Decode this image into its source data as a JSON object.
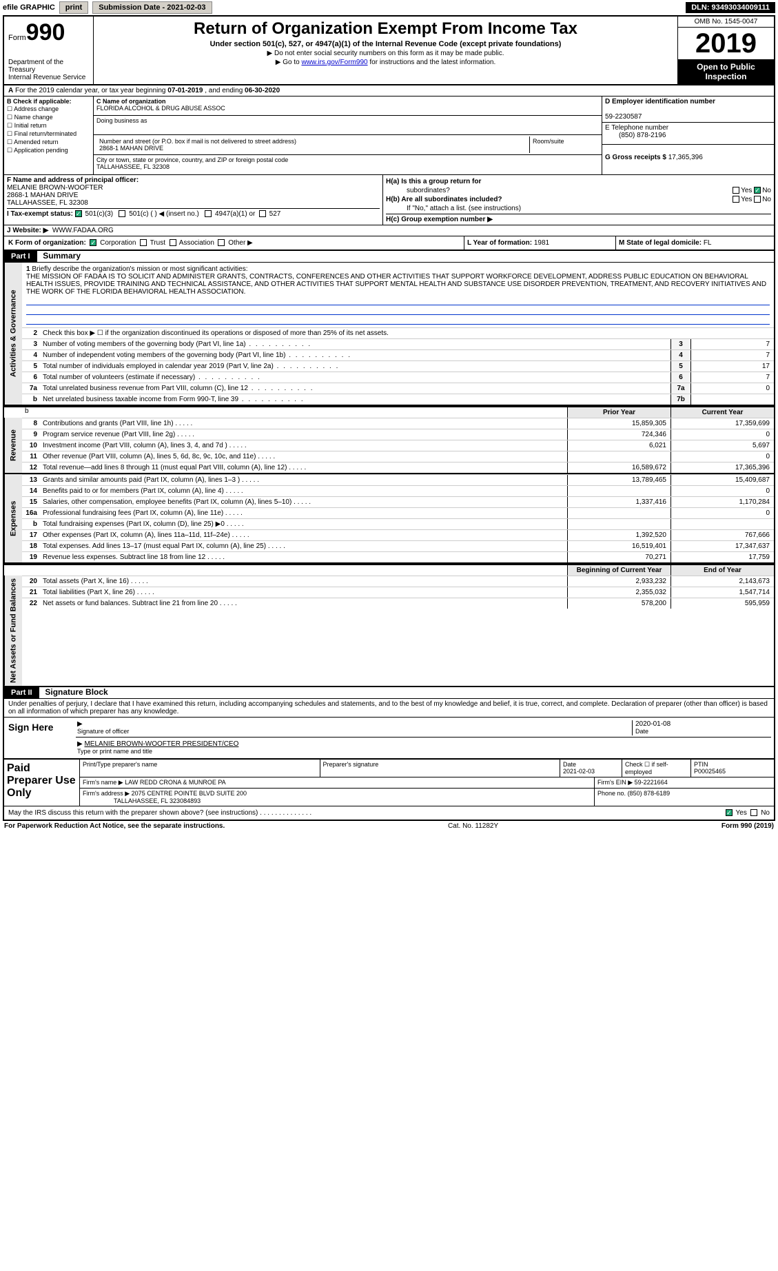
{
  "topbar": {
    "efile_label": "efile GRAPHIC",
    "print_btn": "print",
    "submission_label": "Submission Date - 2021-02-03",
    "dln": "DLN: 93493034009111"
  },
  "header": {
    "form_prefix": "Form",
    "form_number": "990",
    "dept": "Department of the Treasury",
    "irs": "Internal Revenue Service",
    "title": "Return of Organization Exempt From Income Tax",
    "subtitle": "Under section 501(c), 527, or 4947(a)(1) of the Internal Revenue Code (except private foundations)",
    "note1": "▶ Do not enter social security numbers on this form as it may be made public.",
    "note2_pre": "▶ Go to ",
    "note2_link": "www.irs.gov/Form990",
    "note2_post": " for instructions and the latest information.",
    "omb": "OMB No. 1545-0047",
    "year": "2019",
    "inspect": "Open to Public Inspection"
  },
  "period": {
    "label_a": "A",
    "text": " For the 2019 calendar year, or tax year beginning ",
    "begin": "07-01-2019",
    "mid": " , and ending ",
    "end": "06-30-2020"
  },
  "blockB": {
    "title": "B Check if applicable:",
    "items": [
      "Address change",
      "Name change",
      "Initial return",
      "Final return/terminated",
      "Amended return",
      "Application pending"
    ]
  },
  "blockC": {
    "name_lbl": "C Name of organization",
    "name": "FLORIDA ALCOHOL & DRUG ABUSE ASSOC",
    "dba_lbl": "Doing business as",
    "dba": "",
    "addr_lbl": "Number and street (or P.O. box if mail is not delivered to street address)",
    "room_lbl": "Room/suite",
    "addr": "2868-1 MAHAN DRIVE",
    "city_lbl": "City or town, state or province, country, and ZIP or foreign postal code",
    "city": "TALLAHASSEE, FL  32308"
  },
  "blockD": {
    "lbl": "D Employer identification number",
    "val": "59-2230587"
  },
  "blockE": {
    "lbl": "E Telephone number",
    "val": "(850) 878-2196"
  },
  "blockG": {
    "lbl": "G Gross receipts $",
    "val": "17,365,396"
  },
  "blockF": {
    "lbl": "F  Name and address of principal officer:",
    "name": "MELANIE BROWN-WOOFTER",
    "addr1": "2868-1 MAHAN DRIVE",
    "addr2": "TALLAHASSEE, FL  32308"
  },
  "blockH": {
    "ha_lbl": "H(a)  Is this a group return for",
    "ha_sub": "subordinates?",
    "ha_yes": "Yes",
    "ha_no": "No",
    "hb_lbl": "H(b)  Are all subordinates included?",
    "hb_yes": "Yes",
    "hb_no": "No",
    "hb_note": "If \"No,\" attach a list. (see instructions)",
    "hc_lbl": "H(c)  Group exemption number ▶"
  },
  "blockI": {
    "lbl": "I   Tax-exempt status:",
    "opts": [
      "501(c)(3)",
      "501(c) (  ) ◀ (insert no.)",
      "4947(a)(1) or",
      "527"
    ]
  },
  "blockJ": {
    "lbl": "J   Website: ▶",
    "val": "WWW.FADAA.ORG"
  },
  "blockK": {
    "lbl": "K Form of organization:",
    "opts": [
      "Corporation",
      "Trust",
      "Association",
      "Other ▶"
    ]
  },
  "blockL": {
    "lbl": "L Year of formation:",
    "val": "1981"
  },
  "blockM": {
    "lbl": "M State of legal domicile:",
    "val": "FL"
  },
  "part1": {
    "hdr": "Part I",
    "title": "Summary",
    "side_gov": "Activities & Governance",
    "side_rev": "Revenue",
    "side_exp": "Expenses",
    "side_net": "Net Assets or Fund Balances",
    "q1_lbl": "1",
    "q1_txt": "Briefly describe the organization's mission or most significant activities:",
    "q1_val": "THE MISSION OF FADAA IS TO SOLICIT AND ADMINISTER GRANTS, CONTRACTS, CONFERENCES AND OTHER ACTIVITIES THAT SUPPORT WORKFORCE DEVELOPMENT, ADDRESS PUBLIC EDUCATION ON BEHAVIORAL HEALTH ISSUES, PROVIDE TRAINING AND TECHNICAL ASSISTANCE, AND OTHER ACTIVITIES THAT SUPPORT MENTAL HEALTH AND SUBSTANCE USE DISORDER PREVENTION, TREATMENT, AND RECOVERY INITIATIVES AND THE WORK OF THE FLORIDA BEHAVIORAL HEALTH ASSOCIATION.",
    "q2": "Check this box ▶ ☐  if the organization discontinued its operations or disposed of more than 25% of its net assets.",
    "rows_gov": [
      {
        "n": "3",
        "d": "Number of voting members of the governing body (Part VI, line 1a)",
        "box": "3",
        "v": "7"
      },
      {
        "n": "4",
        "d": "Number of independent voting members of the governing body (Part VI, line 1b)",
        "box": "4",
        "v": "7"
      },
      {
        "n": "5",
        "d": "Total number of individuals employed in calendar year 2019 (Part V, line 2a)",
        "box": "5",
        "v": "17"
      },
      {
        "n": "6",
        "d": "Total number of volunteers (estimate if necessary)",
        "box": "6",
        "v": "7"
      },
      {
        "n": "7a",
        "d": "Total unrelated business revenue from Part VIII, column (C), line 12",
        "box": "7a",
        "v": "0"
      },
      {
        "n": "b",
        "d": "Net unrelated business taxable income from Form 990-T, line 39",
        "box": "7b",
        "v": ""
      }
    ],
    "hdr_prior": "Prior Year",
    "hdr_current": "Current Year",
    "rows_rev": [
      {
        "n": "8",
        "d": "Contributions and grants (Part VIII, line 1h)",
        "py": "15,859,305",
        "cy": "17,359,699"
      },
      {
        "n": "9",
        "d": "Program service revenue (Part VIII, line 2g)",
        "py": "724,346",
        "cy": "0"
      },
      {
        "n": "10",
        "d": "Investment income (Part VIII, column (A), lines 3, 4, and 7d )",
        "py": "6,021",
        "cy": "5,697"
      },
      {
        "n": "11",
        "d": "Other revenue (Part VIII, column (A), lines 5, 6d, 8c, 9c, 10c, and 11e)",
        "py": "",
        "cy": "0"
      },
      {
        "n": "12",
        "d": "Total revenue—add lines 8 through 11 (must equal Part VIII, column (A), line 12)",
        "py": "16,589,672",
        "cy": "17,365,396"
      }
    ],
    "rows_exp": [
      {
        "n": "13",
        "d": "Grants and similar amounts paid (Part IX, column (A), lines 1–3 )",
        "py": "13,789,465",
        "cy": "15,409,687"
      },
      {
        "n": "14",
        "d": "Benefits paid to or for members (Part IX, column (A), line 4)",
        "py": "",
        "cy": "0"
      },
      {
        "n": "15",
        "d": "Salaries, other compensation, employee benefits (Part IX, column (A), lines 5–10)",
        "py": "1,337,416",
        "cy": "1,170,284"
      },
      {
        "n": "16a",
        "d": "Professional fundraising fees (Part IX, column (A), line 11e)",
        "py": "",
        "cy": "0"
      },
      {
        "n": "b",
        "d": "Total fundraising expenses (Part IX, column (D), line 25) ▶0",
        "py": "",
        "cy": ""
      },
      {
        "n": "17",
        "d": "Other expenses (Part IX, column (A), lines 11a–11d, 11f–24e)",
        "py": "1,392,520",
        "cy": "767,666"
      },
      {
        "n": "18",
        "d": "Total expenses. Add lines 13–17 (must equal Part IX, column (A), line 25)",
        "py": "16,519,401",
        "cy": "17,347,637"
      },
      {
        "n": "19",
        "d": "Revenue less expenses. Subtract line 18 from line 12",
        "py": "70,271",
        "cy": "17,759"
      }
    ],
    "hdr_begin": "Beginning of Current Year",
    "hdr_end": "End of Year",
    "rows_net": [
      {
        "n": "20",
        "d": "Total assets (Part X, line 16)",
        "py": "2,933,232",
        "cy": "2,143,673"
      },
      {
        "n": "21",
        "d": "Total liabilities (Part X, line 26)",
        "py": "2,355,032",
        "cy": "1,547,714"
      },
      {
        "n": "22",
        "d": "Net assets or fund balances. Subtract line 21 from line 20",
        "py": "578,200",
        "cy": "595,959"
      }
    ]
  },
  "part2": {
    "hdr": "Part II",
    "title": "Signature Block",
    "decl": "Under penalties of perjury, I declare that I have examined this return, including accompanying schedules and statements, and to the best of my knowledge and belief, it is true, correct, and complete. Declaration of preparer (other than officer) is based on all information of which preparer has any knowledge.",
    "sign_here": "Sign Here",
    "sig_officer_lbl": "Signature of officer",
    "sig_date": "2020-01-08",
    "date_lbl": "Date",
    "officer_name": "MELANIE BROWN-WOOFTER  PRESIDENT/CEO",
    "officer_lbl": "Type or print name and title",
    "paid_prep": "Paid Preparer Use Only",
    "prep_name_lbl": "Print/Type preparer's name",
    "prep_sig_lbl": "Preparer's signature",
    "prep_date_lbl": "Date",
    "prep_date": "2021-02-03",
    "prep_self_lbl": "Check ☐ if self-employed",
    "ptin_lbl": "PTIN",
    "ptin": "P00025465",
    "firm_name_lbl": "Firm's name      ▶",
    "firm_name": "LAW REDD CRONA & MUNROE PA",
    "firm_ein_lbl": "Firm's EIN ▶",
    "firm_ein": "59-2221664",
    "firm_addr_lbl": "Firm's address ▶",
    "firm_addr1": "2075 CENTRE POINTE BLVD SUITE 200",
    "firm_addr2": "TALLAHASSEE, FL  323084893",
    "phone_lbl": "Phone no.",
    "phone": "(850) 878-6189",
    "discuss": "May the IRS discuss this return with the preparer shown above? (see instructions)",
    "yes": "Yes",
    "no": "No"
  },
  "footer": {
    "left": "For Paperwork Reduction Act Notice, see the separate instructions.",
    "mid": "Cat. No. 11282Y",
    "right": "Form 990 (2019)"
  }
}
